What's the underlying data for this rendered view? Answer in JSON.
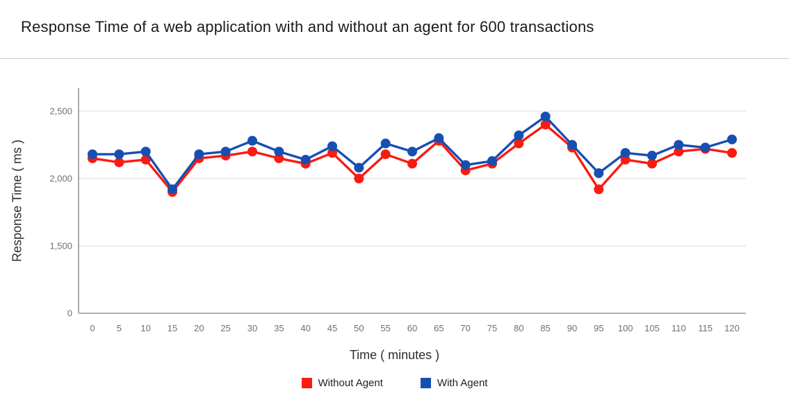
{
  "page": {
    "title": "Response Time of a web application with and without an agent for 600 transactions"
  },
  "chart_data": {
    "type": "line",
    "title": "Response Time of a web application with and without an agent for 600 transactions",
    "xlabel": "Time ( minutes )",
    "ylabel": "Response Time ( ms )",
    "x": [
      0,
      5,
      10,
      15,
      20,
      25,
      30,
      35,
      40,
      45,
      50,
      55,
      60,
      65,
      70,
      75,
      80,
      85,
      90,
      95,
      100,
      105,
      110,
      115,
      120
    ],
    "y_ticks": [
      0,
      1500,
      2000,
      2500
    ],
    "y_tick_labels": [
      "0",
      "1,500",
      "2,000",
      "2,500"
    ],
    "grid": true,
    "marker": "circle",
    "legend_position": "bottom",
    "series": [
      {
        "name": "Without Agent",
        "color": "#fb1a10",
        "values": [
          2150,
          2120,
          2140,
          1900,
          2150,
          2170,
          2200,
          2150,
          2110,
          2190,
          2000,
          2180,
          2110,
          2280,
          2060,
          2110,
          2260,
          2400,
          2230,
          1920,
          2140,
          2110,
          2200,
          2220,
          2190
        ]
      },
      {
        "name": "With Agent",
        "color": "#164fb2",
        "values": [
          2180,
          2180,
          2200,
          1920,
          2180,
          2200,
          2280,
          2200,
          2140,
          2240,
          2080,
          2260,
          2200,
          2300,
          2100,
          2130,
          2320,
          2460,
          2250,
          2040,
          2190,
          2170,
          2250,
          2230,
          2290
        ]
      }
    ],
    "colors": {
      "grid": "#e6e6e6",
      "y_axis_line": "#8f8f8f",
      "x_axis_line": "#b0b0b0",
      "tick_label": "#756e66",
      "axis_title": "#2d2d2d",
      "title": "#1b1b1b"
    }
  }
}
